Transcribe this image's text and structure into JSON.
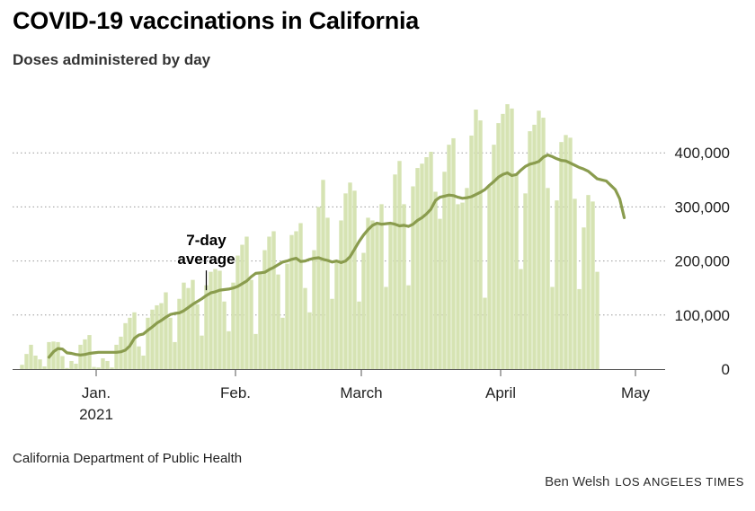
{
  "title": "COVID-19 vaccinations in California",
  "subtitle": "Doses administered by day",
  "source": "California Department of Public Health",
  "credit": {
    "author": "Ben Welsh",
    "publication": "LOS ANGELES TIMES"
  },
  "annotation": {
    "line1": "7-day",
    "line2": "average",
    "date_index": 35
  },
  "colors": {
    "bars": "#d6e3b3",
    "line": "#8a9c4e",
    "grid": "#999999",
    "text": "#222222"
  },
  "chart_data": {
    "type": "bar",
    "start_date": "2020-12-15",
    "end_date": "2021-04-30",
    "ylim": [
      0,
      500000
    ],
    "yticks": [
      0,
      100000,
      200000,
      300000,
      400000
    ],
    "ytick_labels": [
      "0",
      "100,000",
      "200,000",
      "300,000",
      "400,000"
    ],
    "grid": "horizontal dotted",
    "xticks": [
      {
        "date": "2021-01-01",
        "label": "Jan.",
        "sublabel": "2021"
      },
      {
        "date": "2021-02-01",
        "label": "Feb.",
        "sublabel": ""
      },
      {
        "date": "2021-03-01",
        "label": "March",
        "sublabel": ""
      },
      {
        "date": "2021-04-01",
        "label": "April",
        "sublabel": ""
      },
      {
        "date": "2021-05-01",
        "label": "May",
        "sublabel": ""
      }
    ],
    "series": [
      {
        "kind": "bar",
        "values": [
          8000,
          28000,
          45000,
          25000,
          18000,
          5000,
          50000,
          51000,
          50000,
          24000,
          2000,
          15000,
          10000,
          45000,
          55000,
          63000,
          4000,
          3000,
          20000,
          15000,
          3000,
          45000,
          60000,
          85000,
          95000,
          105000,
          42000,
          25000,
          95000,
          110000,
          118000,
          122000,
          142000,
          95000,
          50000,
          130000,
          160000,
          150000,
          165000,
          120000,
          62000,
          155000,
          180000,
          185000,
          182000,
          125000,
          70000,
          160000,
          210000,
          230000,
          245000,
          165000,
          65000,
          180000,
          220000,
          245000,
          255000,
          175000,
          95000,
          195000,
          248000,
          255000,
          270000,
          150000,
          105000,
          220000,
          300000,
          350000,
          280000,
          130000,
          200000,
          275000,
          325000,
          345000,
          330000,
          125000,
          215000,
          280000,
          275000,
          270000,
          305000,
          152000,
          268000,
          360000,
          385000,
          305000,
          155000,
          338000,
          372000,
          380000,
          392000,
          402000,
          328000,
          278000,
          365000,
          415000,
          427000,
          305000,
          308000,
          335000,
          432000,
          480000,
          460000,
          132000,
          338000,
          415000,
          455000,
          472000,
          490000,
          482000,
          360000,
          185000,
          325000,
          440000,
          452000,
          478000,
          465000,
          335000,
          152000,
          312000,
          420000,
          433000,
          428000,
          315000,
          148000,
          262000,
          322000,
          310000,
          180000
        ],
        "value_start_date": "2020-12-15"
      },
      {
        "kind": "line",
        "name": "7-day average",
        "start_date": "2020-12-21",
        "values": [
          22000,
          32000,
          38000,
          37000,
          30000,
          29000,
          27000,
          26000,
          27000,
          29000,
          30000,
          31000,
          31000,
          31000,
          31000,
          31000,
          32000,
          35000,
          43000,
          57000,
          63000,
          65000,
          72000,
          78000,
          85000,
          90000,
          96000,
          101000,
          103000,
          104000,
          108000,
          114000,
          120000,
          125000,
          130000,
          136000,
          141000,
          143000,
          146000,
          147000,
          148000,
          150000,
          153000,
          158000,
          163000,
          171000,
          177000,
          178000,
          179000,
          184000,
          188000,
          193000,
          198000,
          200000,
          203000,
          205000,
          199000,
          200000,
          203000,
          205000,
          206000,
          203000,
          201000,
          198000,
          200000,
          197000,
          200000,
          208000,
          222000,
          236000,
          248000,
          258000,
          266000,
          270000,
          268000,
          269000,
          270000,
          268000,
          265000,
          266000,
          264000,
          268000,
          275000,
          280000,
          287000,
          296000,
          312000,
          318000,
          320000,
          322000,
          321000,
          318000,
          316000,
          317000,
          319000,
          323000,
          327000,
          332000,
          340000,
          347000,
          355000,
          360000,
          363000,
          358000,
          360000,
          368000,
          375000,
          379000,
          381000,
          384000,
          392000,
          396000,
          393000,
          389000,
          386000,
          385000,
          381000,
          377000,
          373000,
          370000,
          366000,
          359000,
          352000,
          350000,
          348000,
          340000,
          332000,
          315000,
          280000
        ]
      }
    ]
  }
}
